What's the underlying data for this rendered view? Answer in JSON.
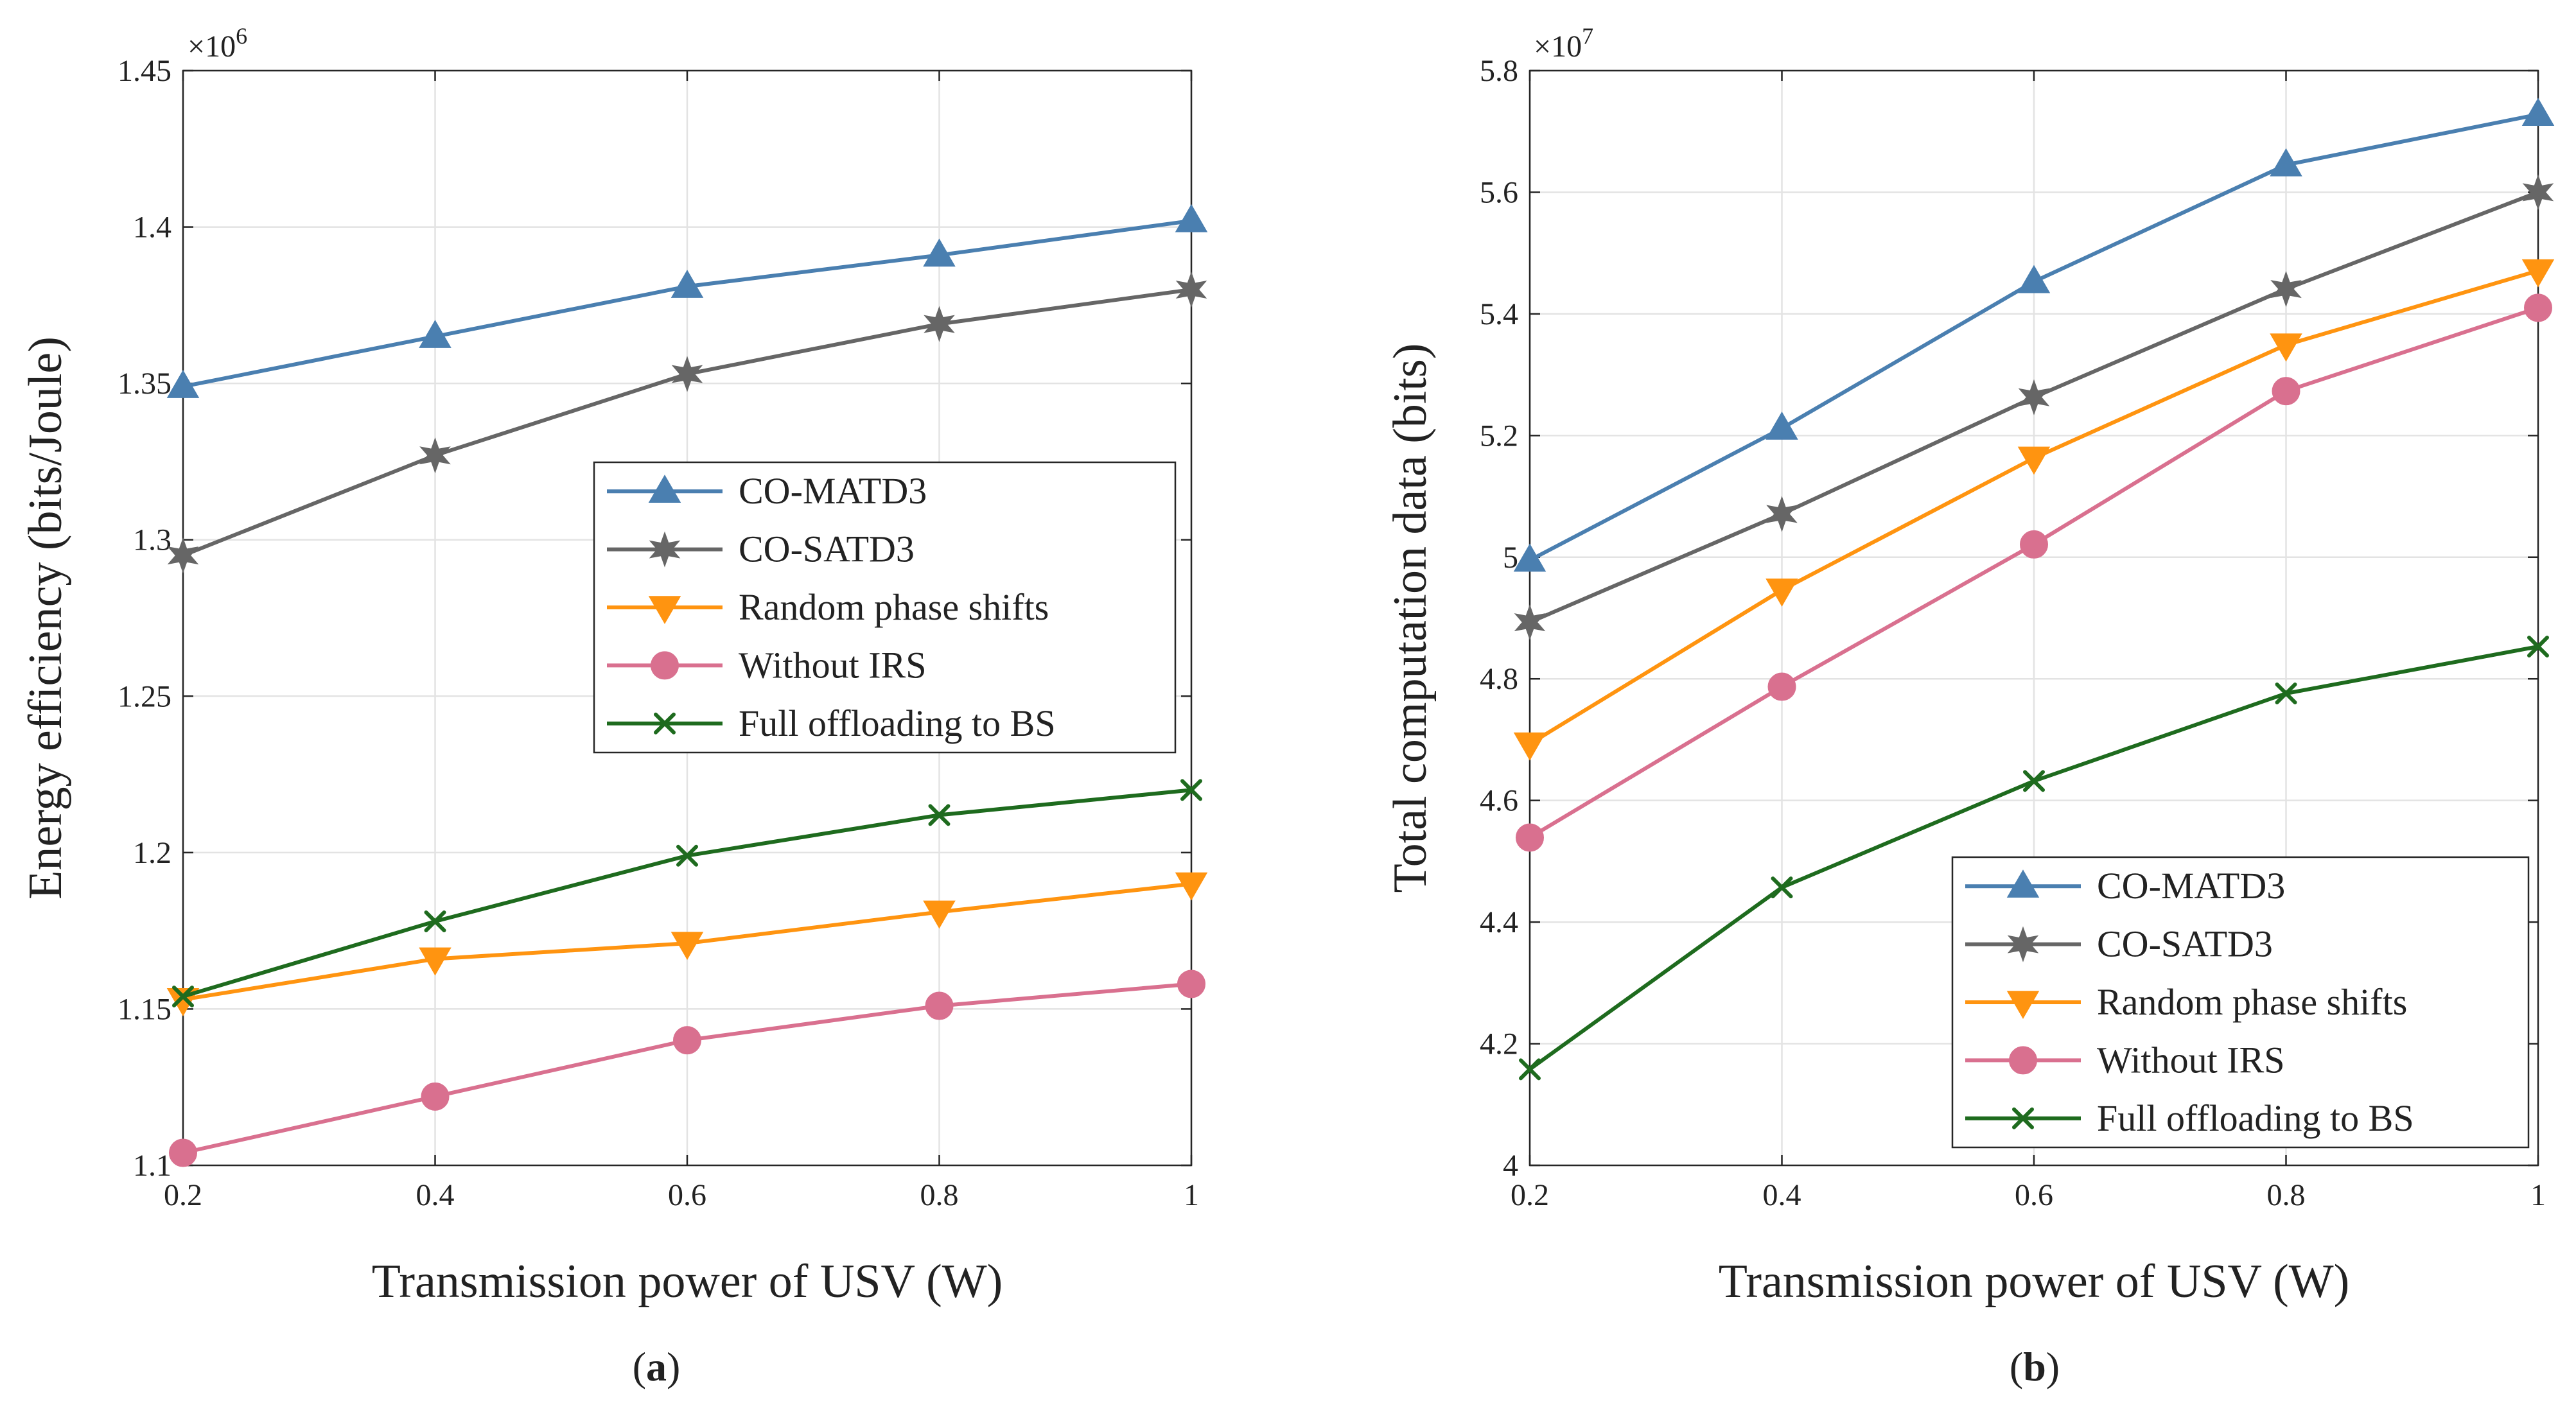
{
  "colors": {
    "co_matd3": "#4A7FB0",
    "co_satd3": "#666666",
    "random_phase": "#FF9410",
    "without_irs": "#D9708F",
    "full_offloading": "#1E6B1E"
  },
  "chart_data": [
    {
      "type": "line",
      "panel": "a",
      "caption": "(a)",
      "xlabel": "Transmission power of USV (W)",
      "ylabel": "Energy efficiency (bits/Joule)",
      "exponent_label": "×10",
      "exponent_power": "6",
      "x": [
        0.2,
        0.4,
        0.6,
        0.8,
        1.0
      ],
      "xlim": [
        0.2,
        1.0
      ],
      "ylim": [
        1.1,
        1.45
      ],
      "xticks": [
        0.2,
        0.4,
        0.6,
        0.8,
        1.0
      ],
      "xtick_labels": [
        "0.2",
        "0.4",
        "0.6",
        "0.8",
        "1"
      ],
      "yticks": [
        1.1,
        1.15,
        1.2,
        1.25,
        1.3,
        1.35,
        1.4,
        1.45
      ],
      "ytick_labels": [
        "1.1",
        "1.15",
        "1.2",
        "1.25",
        "1.3",
        "1.35",
        "1.4",
        "1.45"
      ],
      "grid": true,
      "legend_position": "center-right",
      "series": [
        {
          "name": "CO-MATD3",
          "marker": "triangle-up",
          "color_key": "co_matd3",
          "values": [
            1.349,
            1.365,
            1.381,
            1.391,
            1.402
          ]
        },
        {
          "name": "CO-SATD3",
          "marker": "star",
          "color_key": "co_satd3",
          "values": [
            1.295,
            1.327,
            1.353,
            1.369,
            1.38
          ]
        },
        {
          "name": "Random phase shifts",
          "marker": "triangle-down",
          "color_key": "random_phase",
          "values": [
            1.153,
            1.166,
            1.171,
            1.181,
            1.19
          ]
        },
        {
          "name": "Without IRS",
          "marker": "circle",
          "color_key": "without_irs",
          "values": [
            1.104,
            1.122,
            1.14,
            1.151,
            1.158
          ]
        },
        {
          "name": "Full offloading to BS",
          "marker": "x",
          "color_key": "full_offloading",
          "values": [
            1.154,
            1.178,
            1.199,
            1.212,
            1.22
          ]
        }
      ]
    },
    {
      "type": "line",
      "panel": "b",
      "caption": "(b)",
      "xlabel": "Transmission power of USV (W)",
      "ylabel": "Total computation data (bits)",
      "exponent_label": "×10",
      "exponent_power": "7",
      "x": [
        0.2,
        0.4,
        0.6,
        0.8,
        1.0
      ],
      "xlim": [
        0.2,
        1.0
      ],
      "ylim": [
        4.0,
        5.8
      ],
      "xticks": [
        0.2,
        0.4,
        0.6,
        0.8,
        1.0
      ],
      "xtick_labels": [
        "0.2",
        "0.4",
        "0.6",
        "0.8",
        "1"
      ],
      "yticks": [
        4.0,
        4.2,
        4.4,
        4.6,
        4.8,
        5.0,
        5.2,
        5.4,
        5.6,
        5.8
      ],
      "ytick_labels": [
        "4",
        "4.2",
        "4.4",
        "4.6",
        "4.8",
        "5",
        "5.2",
        "5.4",
        "5.6",
        "5.8"
      ],
      "grid": true,
      "legend_position": "bottom-right",
      "series": [
        {
          "name": "CO-MATD3",
          "marker": "triangle-up",
          "color_key": "co_matd3",
          "values": [
            4.995,
            5.212,
            5.453,
            5.645,
            5.728
          ]
        },
        {
          "name": "CO-SATD3",
          "marker": "star",
          "color_key": "co_satd3",
          "values": [
            4.893,
            5.071,
            5.263,
            5.441,
            5.6
          ]
        },
        {
          "name": "Random phase shifts",
          "marker": "triangle-down",
          "color_key": "random_phase",
          "values": [
            4.693,
            4.946,
            5.163,
            5.349,
            5.471
          ]
        },
        {
          "name": "Without IRS",
          "marker": "circle",
          "color_key": "without_irs",
          "values": [
            4.539,
            4.787,
            5.021,
            5.273,
            5.41
          ]
        },
        {
          "name": "Full offloading to BS",
          "marker": "x",
          "color_key": "full_offloading",
          "values": [
            4.158,
            4.457,
            4.632,
            4.776,
            4.853
          ]
        }
      ]
    }
  ]
}
